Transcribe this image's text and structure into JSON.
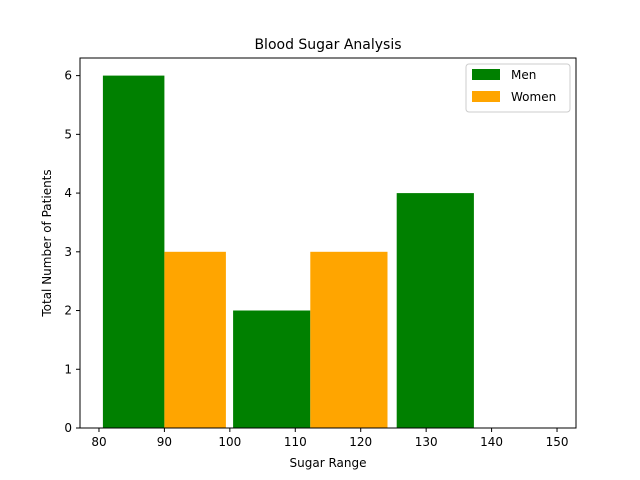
{
  "chart_data": {
    "type": "bar",
    "title": "Blood Sugar Analysis",
    "xlabel": "Sugar Range",
    "ylabel": "Total Number of Patients",
    "xlim": [
      77.1,
      152.9
    ],
    "ylim": [
      0,
      6.3
    ],
    "xticks": [
      80,
      90,
      100,
      110,
      120,
      130,
      140,
      150
    ],
    "yticks": [
      0,
      1,
      2,
      3,
      4,
      5,
      6
    ],
    "grid": false,
    "legend_position": "top-right",
    "series": [
      {
        "name": "Men",
        "color": "#008000",
        "bars": [
          {
            "x0": 80.6,
            "x1": 90.0,
            "value": 6
          },
          {
            "x0": 100.5,
            "x1": 112.3,
            "value": 2
          },
          {
            "x0": 125.5,
            "x1": 137.3,
            "value": 4
          }
        ]
      },
      {
        "name": "Women",
        "color": "#FFA500",
        "bars": [
          {
            "x0": 90.0,
            "x1": 99.4,
            "value": 3
          },
          {
            "x0": 112.3,
            "x1": 124.1,
            "value": 3
          }
        ]
      }
    ]
  }
}
